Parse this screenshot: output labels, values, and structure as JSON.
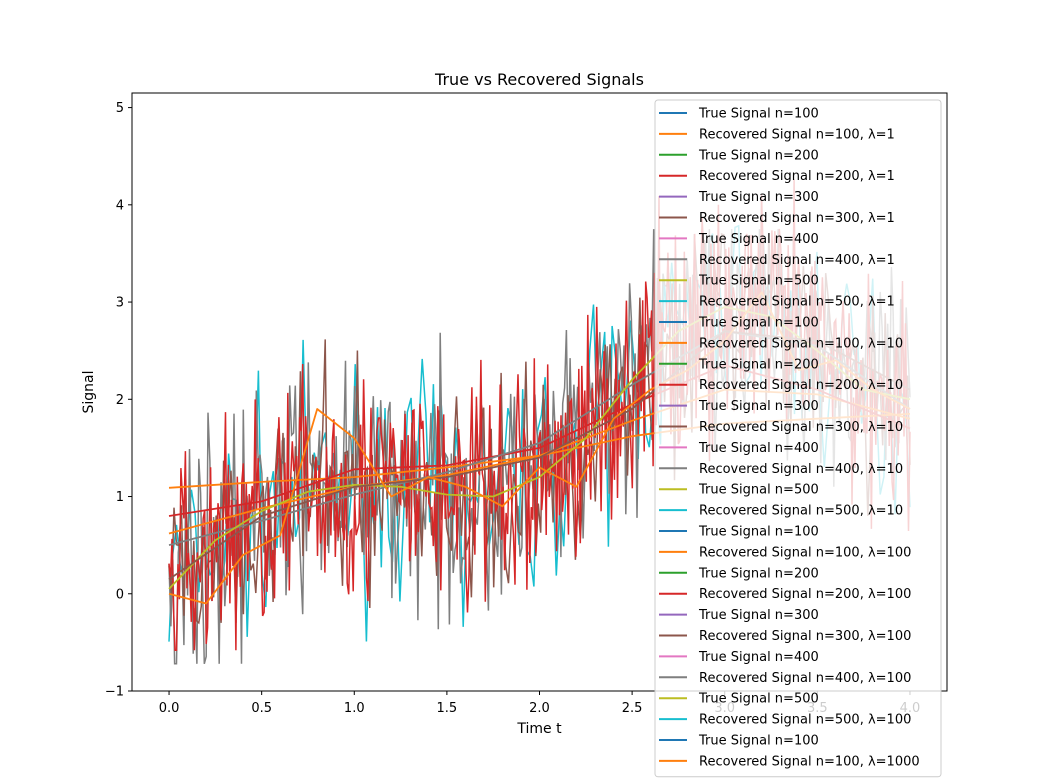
{
  "chart_data": {
    "type": "line",
    "title": "True vs Recovered Signals",
    "xlabel": "Time t",
    "ylabel": "Signal",
    "xlim": [
      -0.2,
      4.2
    ],
    "ylim": [
      -1,
      5.15
    ],
    "xticks": [
      0.0,
      0.5,
      1.0,
      1.5,
      2.0,
      2.5,
      3.0,
      3.5,
      4.0
    ],
    "xtick_labels": [
      "0.0",
      "0.5",
      "1.0",
      "1.5",
      "2.0",
      "2.5",
      "3.0",
      "3.5",
      "4.0"
    ],
    "yticks": [
      -1,
      0,
      1,
      2,
      3,
      4,
      5
    ],
    "ytick_labels": [
      "−1",
      "0",
      "1",
      "2",
      "3",
      "4",
      "5"
    ],
    "grid": false,
    "legend_position": "upper right",
    "series": [
      {
        "name": "True Signal n=100",
        "color": "#1f77b4"
      },
      {
        "name": "Recovered Signal n=100, λ=1",
        "color": "#ff7f0e"
      },
      {
        "name": "True Signal n=200",
        "color": "#2ca02c"
      },
      {
        "name": "Recovered Signal n=200, λ=1",
        "color": "#d62728"
      },
      {
        "name": "True Signal n=300",
        "color": "#9467bd"
      },
      {
        "name": "Recovered Signal n=300, λ=1",
        "color": "#8c564b"
      },
      {
        "name": "True Signal n=400",
        "color": "#e377c2"
      },
      {
        "name": "Recovered Signal n=400, λ=1",
        "color": "#7f7f7f"
      },
      {
        "name": "True Signal n=500",
        "color": "#bcbd22"
      },
      {
        "name": "Recovered Signal n=500, λ=1",
        "color": "#17becf"
      },
      {
        "name": "True Signal n=100",
        "color": "#1f77b4"
      },
      {
        "name": "Recovered Signal n=100, λ=10",
        "color": "#ff7f0e"
      },
      {
        "name": "True Signal n=200",
        "color": "#2ca02c"
      },
      {
        "name": "Recovered Signal n=200, λ=10",
        "color": "#d62728"
      },
      {
        "name": "True Signal n=300",
        "color": "#9467bd"
      },
      {
        "name": "Recovered Signal n=300, λ=10",
        "color": "#8c564b"
      },
      {
        "name": "True Signal n=400",
        "color": "#e377c2"
      },
      {
        "name": "Recovered Signal n=400, λ=10",
        "color": "#7f7f7f"
      },
      {
        "name": "True Signal n=500",
        "color": "#bcbd22"
      },
      {
        "name": "Recovered Signal n=500, λ=10",
        "color": "#17becf"
      },
      {
        "name": "True Signal n=100",
        "color": "#1f77b4"
      },
      {
        "name": "Recovered Signal n=100, λ=100",
        "color": "#ff7f0e"
      },
      {
        "name": "True Signal n=200",
        "color": "#2ca02c"
      },
      {
        "name": "Recovered Signal n=200, λ=100",
        "color": "#d62728"
      },
      {
        "name": "True Signal n=300",
        "color": "#9467bd"
      },
      {
        "name": "Recovered Signal n=300, λ=100",
        "color": "#8c564b"
      },
      {
        "name": "True Signal n=400",
        "color": "#e377c2"
      },
      {
        "name": "Recovered Signal n=400, λ=100",
        "color": "#7f7f7f"
      },
      {
        "name": "True Signal n=500",
        "color": "#bcbd22"
      },
      {
        "name": "Recovered Signal n=500, λ=100",
        "color": "#17becf"
      },
      {
        "name": "True Signal n=100",
        "color": "#1f77b4"
      },
      {
        "name": "Recovered Signal n=100, λ=1000",
        "color": "#ff7f0e"
      }
    ],
    "plotted_lines": [
      {
        "series": "Recovered Signal n=100, λ=1000",
        "color": "#ff7f0e",
        "x": [
          0,
          0.5,
          1,
          1.5,
          2,
          2.5,
          3,
          3.5,
          4
        ],
        "y": [
          1.09,
          1.15,
          1.2,
          1.3,
          1.42,
          1.62,
          1.75,
          1.8,
          1.85
        ]
      },
      {
        "series": "Recovered Signal n=100, λ=100",
        "color": "#ff7f0e",
        "x": [
          0,
          0.5,
          1,
          1.5,
          2,
          2.5,
          3,
          3.5,
          4
        ],
        "y": [
          0.62,
          0.88,
          1.1,
          1.22,
          1.42,
          1.78,
          2.1,
          2.05,
          1.8
        ]
      },
      {
        "series": "Recovered Signal n=200, λ=100",
        "color": "#d62728",
        "x": [
          0,
          0.5,
          1,
          1.5,
          2,
          2.5,
          3,
          3.5,
          4
        ],
        "y": [
          0.8,
          0.95,
          1.28,
          1.32,
          1.5,
          1.95,
          2.35,
          2.1,
          1.7
        ]
      },
      {
        "series": "Recovered Signal n=400, λ=100",
        "color": "#7f7f7f",
        "x": [
          0,
          0.5,
          1,
          1.5,
          2,
          2.5,
          3,
          3.5,
          4
        ],
        "y": [
          0.5,
          0.75,
          1.02,
          1.25,
          1.55,
          2.15,
          2.7,
          2.55,
          1.9
        ]
      },
      {
        "series": "True Signal n=500",
        "color": "#bcbd22",
        "x": [
          0,
          0.25,
          0.5,
          0.75,
          1,
          1.25,
          1.5,
          1.75,
          2,
          2.25,
          2.5,
          2.75,
          3,
          3.25,
          3.5,
          3.75,
          4
        ],
        "y": [
          0.05,
          0.55,
          0.85,
          1.05,
          1.12,
          1.1,
          1.02,
          1.0,
          1.2,
          1.6,
          2.2,
          2.7,
          2.95,
          2.85,
          2.5,
          2.1,
          2.0
        ]
      },
      {
        "series": "Recovered Signal n=300, λ=100",
        "color": "#8c564b",
        "x": [
          0,
          0.5,
          1,
          1.5,
          2,
          2.5,
          3,
          3.5,
          4
        ],
        "y": [
          0.15,
          0.8,
          1.1,
          1.2,
          1.4,
          1.9,
          2.7,
          2.6,
          2.1
        ]
      },
      {
        "series": "Recovered Signal n=100, λ=1",
        "color": "#ff7f0e",
        "x": [
          0,
          0.2,
          0.4,
          0.6,
          0.8,
          1.0,
          1.2,
          1.4,
          1.6,
          1.8,
          2.0,
          2.2,
          2.4,
          2.6,
          2.8,
          3.0,
          3.2,
          3.4,
          3.6,
          3.8,
          4.0
        ],
        "y": [
          0.0,
          -0.1,
          0.4,
          0.6,
          1.9,
          1.6,
          1.0,
          1.2,
          1.1,
          0.9,
          1.3,
          1.1,
          1.8,
          2.1,
          2.3,
          2.6,
          3.1,
          2.3,
          2.4,
          2.1,
          1.9
        ]
      }
    ],
    "noisy_recovered_series": [
      {
        "series": "Recovered Signal n=500, λ=1",
        "color": "#17becf",
        "min": -0.55,
        "max": 4.15
      },
      {
        "series": "Recovered Signal n=400, λ=1",
        "color": "#7f7f7f",
        "min": -0.72,
        "max": 3.75
      },
      {
        "series": "Recovered Signal n=300, λ=1",
        "color": "#8c564b",
        "min": -0.3,
        "max": 3.7
      },
      {
        "series": "Recovered Signal n=200, λ=1",
        "color": "#d62728",
        "min": -0.58,
        "max": 4.5
      }
    ]
  }
}
